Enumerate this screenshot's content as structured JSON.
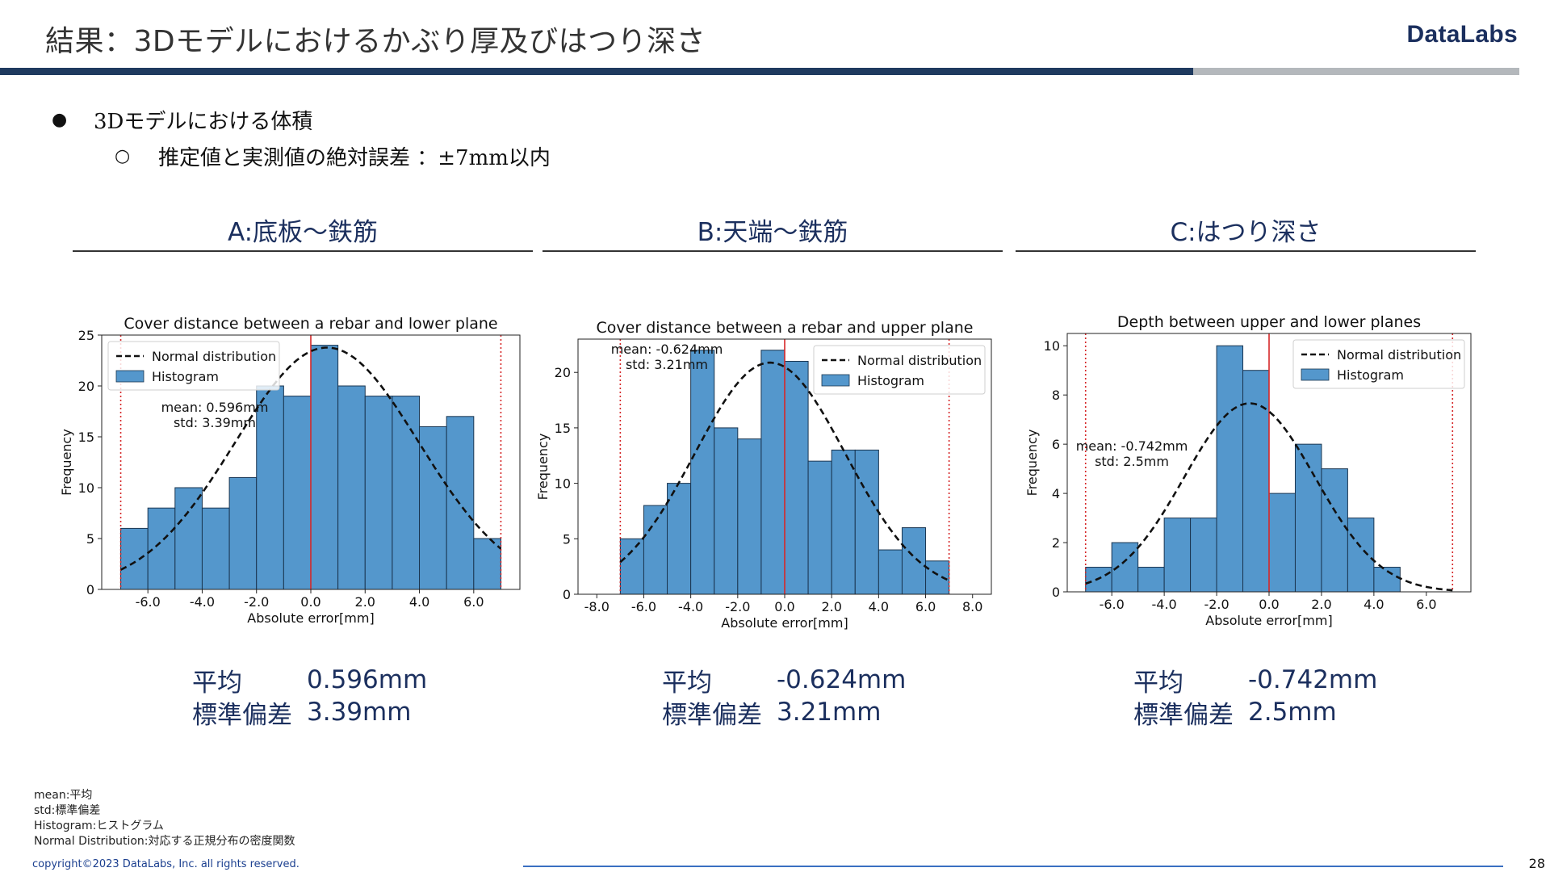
{
  "slide": {
    "title": "結果：3Dモデルにおけるかぶり厚及びはつり深さ",
    "logo": "DataLabs",
    "bullet1": "3Dモデルにおける体積",
    "bullet2": "推定値と実測値の絶対誤差 ：±7mm以内",
    "page_number": "28",
    "copyright": "copyright©2023 DataLabs, Inc. all rights reserved.",
    "footnotes": [
      "mean:平均",
      "std:標準偏差",
      "Histogram:ヒストグラム",
      "Normal Distribution:対応する正規分布の密度関数"
    ]
  },
  "panels": [
    {
      "heading": "A:底板～鉄筋",
      "mean_label": "平均",
      "mean_value": "0.596mm",
      "std_label": "標準偏差",
      "std_value": "3.39mm"
    },
    {
      "heading": "B:天端～鉄筋",
      "mean_label": "平均",
      "mean_value": "-0.624mm",
      "std_label": "標準偏差",
      "std_value": "3.21mm"
    },
    {
      "heading": "C:はつり深さ",
      "mean_label": "平均",
      "mean_value": "-0.742mm",
      "std_label": "標準偏差",
      "std_value": "2.5mm"
    }
  ],
  "colors": {
    "bar_fill": "#5497cc",
    "bar_edge": "#1a3550",
    "red_line": "#d62728",
    "curve": "#111111",
    "heading_color": "#1b2f5e",
    "title_rule_dark": "#1f3a5f",
    "title_rule_light": "#b4b8bc"
  },
  "chart_data": [
    {
      "type": "bar",
      "title": "Cover distance between a rebar and lower plane",
      "xlabel": "Absolute error[mm]",
      "ylabel": "Frequency",
      "xlim": [
        -7.7,
        7.7
      ],
      "ylim": [
        0,
        25
      ],
      "xticks": [
        "-6.0",
        "-4.0",
        "-2.0",
        "0.0",
        "2.0",
        "4.0",
        "6.0"
      ],
      "yticks": [
        "0",
        "5",
        "10",
        "15",
        "20",
        "25"
      ],
      "bin_edges": [
        -7,
        -6,
        -5,
        -4,
        -3,
        -2,
        -1,
        0,
        1,
        2,
        3,
        4,
        5,
        6,
        7
      ],
      "values": [
        6,
        8,
        10,
        8,
        11,
        20,
        19,
        24,
        20,
        19,
        19,
        16,
        17,
        5
      ],
      "mean": 0.596,
      "std": 3.39,
      "annotation": [
        "mean: 0.596mm",
        "std: 3.39mm"
      ],
      "legend": [
        "Normal distribution",
        "Histogram"
      ],
      "legend_position": "upper-left",
      "reference_lines": [
        -7,
        0,
        7
      ]
    },
    {
      "type": "bar",
      "title": "Cover distance between a rebar and upper plane",
      "xlabel": "Absolute error[mm]",
      "ylabel": "Frequency",
      "xlim": [
        -8.8,
        8.8
      ],
      "ylim": [
        0,
        23
      ],
      "xticks": [
        "-8.0",
        "-6.0",
        "-4.0",
        "-2.0",
        "0.0",
        "2.0",
        "4.0",
        "6.0",
        "8.0"
      ],
      "yticks": [
        "0",
        "5",
        "10",
        "15",
        "20"
      ],
      "bin_edges": [
        -7,
        -6,
        -5,
        -4,
        -3,
        -2,
        -1,
        0,
        1,
        2,
        3,
        4,
        5,
        6,
        7
      ],
      "values": [
        5,
        8,
        10,
        22,
        15,
        14,
        22,
        21,
        12,
        13,
        13,
        4,
        6,
        3
      ],
      "mean": -0.624,
      "std": 3.21,
      "annotation": [
        "mean: -0.624mm",
        "std: 3.21mm"
      ],
      "legend": [
        "Normal distribution",
        "Histogram"
      ],
      "legend_position": "upper-right",
      "reference_lines": [
        -7,
        0,
        7
      ]
    },
    {
      "type": "bar",
      "title": "Depth between upper and lower planes",
      "xlabel": "Absolute error[mm]",
      "ylabel": "Frequency",
      "xlim": [
        -7.7,
        7.7
      ],
      "ylim": [
        0,
        10.5
      ],
      "xticks": [
        "-6.0",
        "-4.0",
        "-2.0",
        "0.0",
        "2.0",
        "4.0",
        "6.0"
      ],
      "yticks": [
        "0",
        "2",
        "4",
        "6",
        "8",
        "10"
      ],
      "bin_edges": [
        -7,
        -6,
        -5,
        -4,
        -3,
        -2,
        -1,
        0,
        1,
        2,
        3,
        4,
        5
      ],
      "values": [
        1,
        2,
        1,
        3,
        3,
        10,
        9,
        4,
        6,
        5,
        3,
        1
      ],
      "mean": -0.742,
      "std": 2.5,
      "annotation": [
        "mean: -0.742mm",
        "std: 2.5mm"
      ],
      "legend": [
        "Normal distribution",
        "Histogram"
      ],
      "legend_position": "upper-right",
      "reference_lines": [
        -7,
        0,
        7
      ]
    }
  ]
}
